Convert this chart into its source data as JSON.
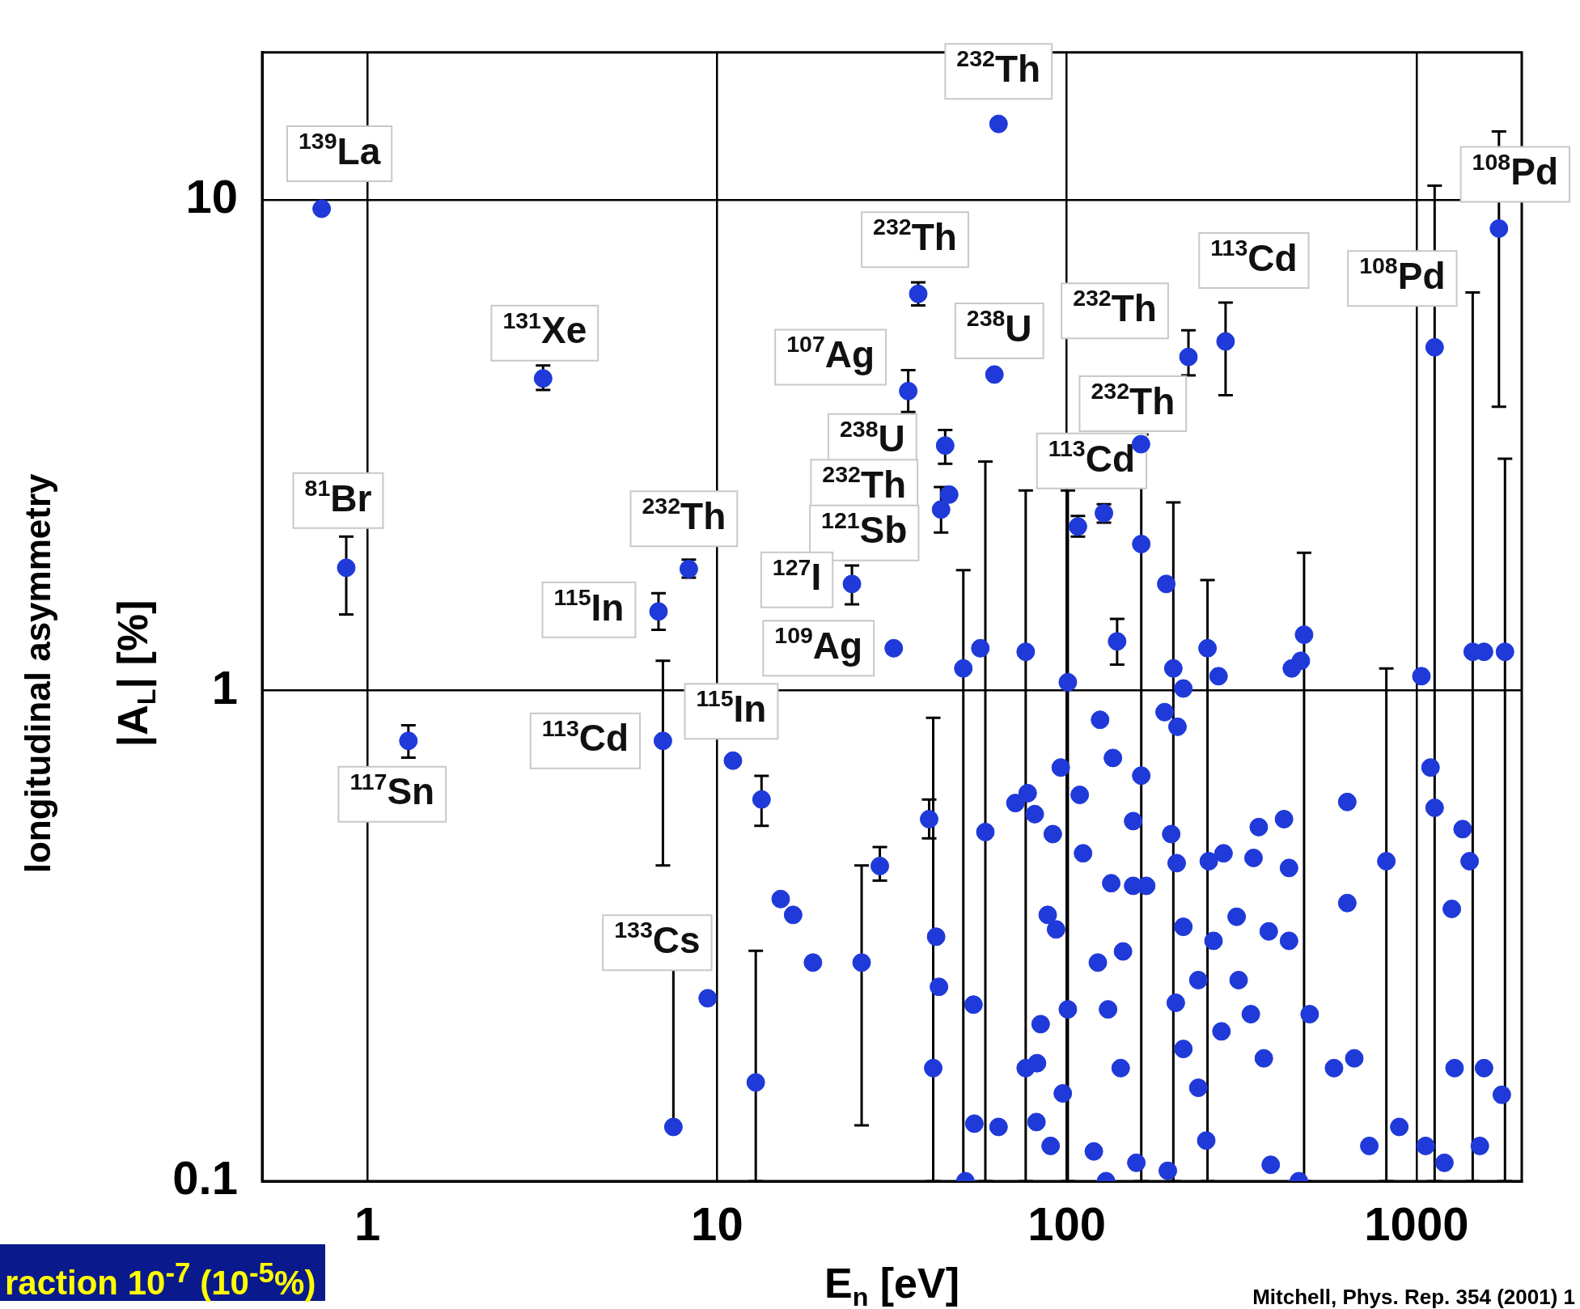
{
  "chart_data": {
    "type": "scatter",
    "xlabel": "E$_{n}$ [eV]",
    "ylabel": "longitudinal asymmetry\n|A$_{L}$| [%]",
    "log": "xy",
    "grid": true,
    "marker": "circle",
    "color": "#1f3ad8",
    "xlim": [
      0.5,
      2000
    ],
    "ylim": [
      0.1,
      20
    ],
    "xticks": [
      1,
      10,
      100,
      1000
    ],
    "yticks": [
      0.1,
      1,
      10
    ],
    "x": [
      0.74,
      0.87,
      1.31,
      3.18,
      6.8,
      7.0,
      7.5,
      8.3,
      9.4,
      11.1,
      13.4,
      12.9,
      15.2,
      16.5,
      18.8,
      24.3,
      25.9,
      29.2,
      32.0,
      35.2,
      37.6,
      40.4,
      44.9,
      46.1,
      43.7,
      42.3,
      43.1,
      41.5,
      63.8,
      62.1,
      50.6,
      56.6,
      58.5,
      54.1,
      51.3,
      54.4,
      63.8,
      71.3,
      76.3,
      77.3,
      81,
      88.2,
      91.2,
      96.1,
      100.7,
      93.2,
      84.2,
      82.2,
      81.9,
      89.9,
      97.4,
      100.7,
      107.6,
      127.7,
      108.9,
      124.5,
      135.5,
      139.3,
      111.3,
      122.7,
      131.2,
      119.5,
      129.5,
      154.8,
      163.3,
      163.3,
      154.8,
      168.7,
      144.8,
      142.6,
      158.1,
      192.5,
      201.7,
      190.4,
      215.4,
      207.3,
      198.9,
      206.2,
      222.8,
      284.5,
      252.6,
      271.6,
      254.7,
      280.7,
      215.4,
      237.8,
      262.8,
      205,
      215.4,
      237.8,
      194.5,
      250.5,
      276.9,
      310,
      342,
      354,
      306,
      336,
      366,
      383,
      378,
      418,
      432,
      440,
      477,
      467,
      432,
      495,
      461,
      581,
      634,
      634,
      664,
      820,
      733,
      893,
      1033,
      1127,
      1097,
      1127,
      1355,
      1419,
      1262,
      1448,
      1560,
      1791,
      1721,
      1285,
      1560,
      1754,
      1518,
      1062,
      1202,
      163,
      134,
      76.3
    ],
    "values": [
      9.6,
      1.78,
      0.79,
      4.33,
      1.45,
      0.79,
      0.129,
      1.77,
      0.236,
      0.72,
      0.6,
      0.159,
      0.376,
      0.349,
      0.279,
      1.65,
      0.279,
      0.439,
      1.22,
      4.08,
      6.44,
      0.547,
      3.16,
      2.51,
      2.34,
      0.315,
      0.249,
      0.17,
      14.3,
      4.41,
      1.11,
      1.22,
      0.515,
      0.229,
      0.1,
      0.131,
      0.129,
      0.59,
      1.2,
      0.618,
      0.56,
      0.349,
      0.51,
      0.697,
      1.04,
      0.326,
      0.209,
      0.174,
      0.132,
      0.118,
      0.151,
      0.224,
      2.16,
      2.3,
      0.613,
      0.872,
      0.729,
      1.26,
      0.466,
      0.279,
      0.224,
      0.115,
      0.1,
      0.4,
      1.99,
      0.671,
      0.542,
      0.4,
      0.294,
      0.17,
      0.109,
      1.65,
      1.11,
      0.904,
      1.01,
      0.844,
      0.51,
      0.445,
      4.79,
      5.15,
      1.22,
      1.07,
      0.449,
      0.466,
      0.33,
      0.257,
      0.309,
      0.231,
      0.186,
      0.155,
      0.105,
      0.121,
      0.202,
      0.257,
      0.456,
      0.527,
      0.346,
      0.219,
      0.178,
      0.108,
      0.323,
      0.547,
      0.435,
      1.11,
      1.3,
      1.15,
      0.309,
      0.219,
      0.1,
      0.17,
      0.593,
      0.369,
      0.178,
      0.449,
      0.118,
      0.129,
      1.07,
      5.01,
      0.697,
      0.577,
      0.522,
      0.449,
      0.359,
      1.2,
      1.2,
      1.2,
      8.75,
      0.17,
      0.17,
      0.15,
      0.118,
      0.118,
      0.109,
      3.18,
      0.405,
      0.17
    ],
    "errors": [
      null,
      [
        1.43,
        2.06
      ],
      [
        0.73,
        0.85
      ],
      [
        4.1,
        4.6
      ],
      [
        1.33,
        1.58
      ],
      [
        0.44,
        1.15
      ],
      [
        0.129,
        0.295
      ],
      [
        1.7,
        1.85
      ],
      null,
      null,
      [
        0.53,
        0.67
      ],
      [
        0.1,
        0.295
      ],
      null,
      null,
      null,
      [
        1.5,
        1.8
      ],
      [
        0.13,
        0.44
      ],
      [
        0.41,
        0.48
      ],
      null,
      [
        3.7,
        4.5
      ],
      [
        6.1,
        6.8
      ],
      [
        0.5,
        0.6
      ],
      [
        2.9,
        3.4
      ],
      null,
      [
        2.1,
        2.6
      ],
      null,
      null,
      [
        0.1,
        0.88
      ],
      null,
      null,
      [
        0.1,
        1.76
      ],
      null,
      [
        0.1,
        2.93
      ],
      null,
      null,
      null,
      null,
      null,
      [
        0.1,
        2.56
      ],
      null,
      null,
      null,
      null,
      null,
      [
        0.1,
        2.56
      ],
      null,
      null,
      null,
      null,
      null,
      null,
      null,
      [
        2.06,
        2.27
      ],
      [
        2.2,
        2.4
      ],
      null,
      null,
      null,
      [
        1.13,
        1.4
      ],
      null,
      null,
      null,
      null,
      null,
      null,
      [
        0.1,
        3.33
      ],
      null,
      null,
      null,
      null,
      null,
      null,
      null,
      [
        0.1,
        2.42
      ],
      null,
      null,
      null,
      null,
      null,
      [
        4.39,
        5.43
      ],
      [
        4.0,
        6.18
      ],
      [
        0.1,
        1.68
      ],
      null,
      null,
      null,
      null,
      null,
      null,
      null,
      null,
      null,
      null,
      null,
      null,
      null,
      null,
      null,
      null,
      null,
      null,
      null,
      null,
      null,
      null,
      null,
      [
        0.1,
        1.91
      ],
      null,
      null,
      null,
      null,
      null,
      null,
      null,
      null,
      [
        0.1,
        1.11
      ],
      null,
      null,
      null,
      [
        0.1,
        10.7
      ],
      null,
      null,
      null,
      null,
      null,
      [
        0.1,
        6.48
      ],
      null,
      [
        0.1,
        2.97
      ],
      [
        3.79,
        13.8
      ],
      null,
      null,
      null,
      null,
      null,
      null,
      null,
      null,
      null
    ],
    "annotations": [
      {
        "text": "$^{139}$La",
        "x": 0.74,
        "y": 9.6
      },
      {
        "text": "$^{81}$Br",
        "x": 0.87,
        "y": 1.78
      },
      {
        "text": "$^{117}$Sn",
        "x": 1.31,
        "y": 0.79
      },
      {
        "text": "$^{131}$Xe",
        "x": 3.18,
        "y": 4.33
      },
      {
        "text": "$^{232}$Th",
        "x": 8.3,
        "y": 1.77
      },
      {
        "text": "$^{115}$In",
        "x": 6.8,
        "y": 1.45
      },
      {
        "text": "$^{113}$Cd",
        "x": 7.0,
        "y": 0.79
      },
      {
        "text": "$^{115}$In",
        "x": 11.1,
        "y": 0.72
      },
      {
        "text": "$^{133}$Cs",
        "x": 7.5,
        "y": 0.295
      },
      {
        "text": "$^{232}$Th",
        "x": 37.6,
        "y": 6.44
      },
      {
        "text": "$^{107}$Ag",
        "x": 35.2,
        "y": 4.08
      },
      {
        "text": "$^{238}$U",
        "x": 44.9,
        "y": 3.16
      },
      {
        "text": "$^{232}$Th",
        "x": 46.1,
        "y": 2.51
      },
      {
        "text": "$^{121}$Sb",
        "x": 43.7,
        "y": 2.34
      },
      {
        "text": "$^{127}$I",
        "x": 24.3,
        "y": 1.65
      },
      {
        "text": "$^{109}$Ag",
        "x": 32.0,
        "y": 1.22
      },
      {
        "text": "$^{232}$Th",
        "x": 63.8,
        "y": 14.3
      },
      {
        "text": "$^{238}$U",
        "x": 62.1,
        "y": 4.41
      },
      {
        "text": "$^{232}$Th",
        "x": 222.8,
        "y": 4.79
      },
      {
        "text": "$^{232}$Th",
        "x": 163,
        "y": 3.18
      },
      {
        "text": "$^{113}$Cd",
        "x": 107.6,
        "y": 2.16
      },
      {
        "text": "$^{113}$Cd",
        "x": 284.5,
        "y": 5.15
      },
      {
        "text": "$^{108}$Pd",
        "x": 1127,
        "y": 5.01
      },
      {
        "text": "$^{108}$Pd",
        "x": 1721,
        "y": 8.75
      },
      "raction 10$^{-7}$ (10$^{-5}$%)",
      "Mitchell, Phys. Rep. 354 (2001) 1"
    ]
  }
}
